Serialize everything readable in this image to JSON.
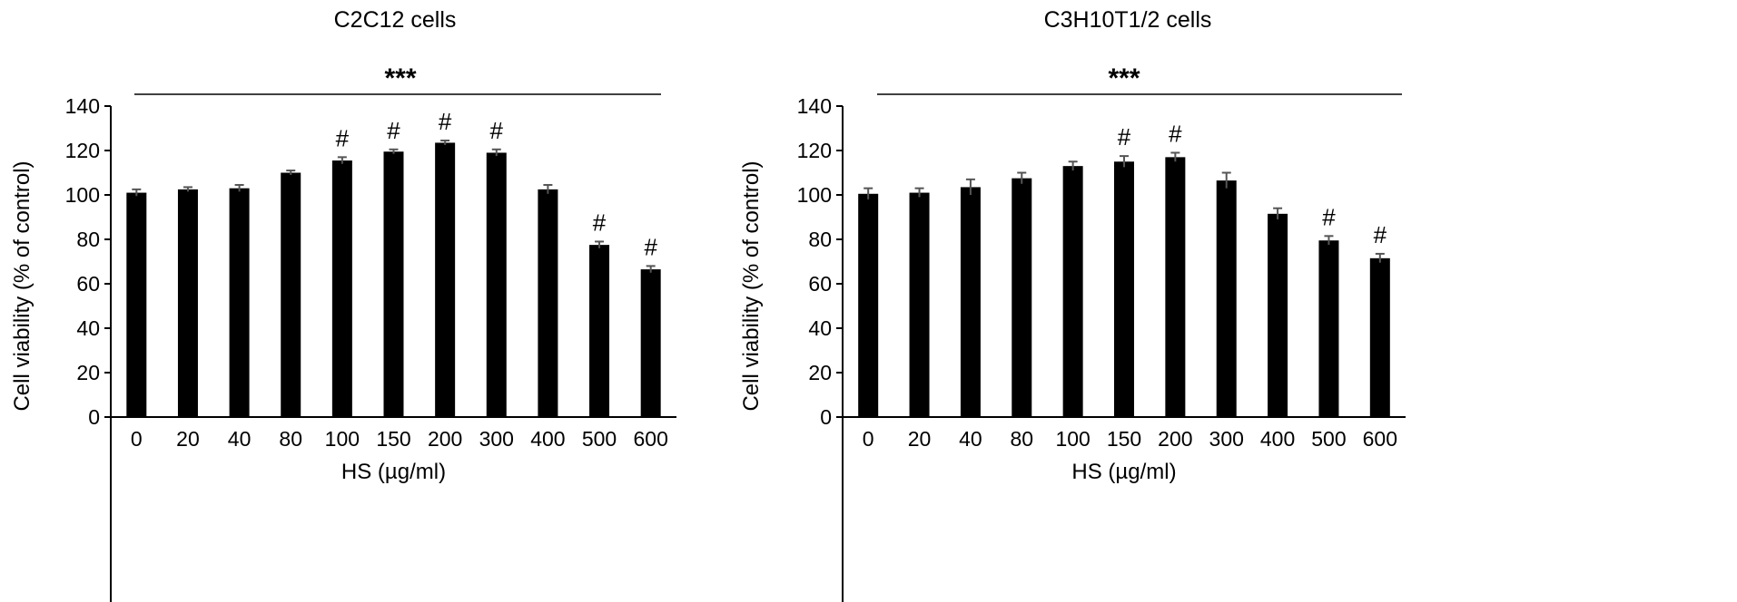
{
  "chart_data": [
    {
      "type": "bar",
      "title": "C2C12 cells",
      "xlabel": "HS (µg/ml)",
      "ylabel": "Cell viability (% of control)",
      "ylim": [
        0,
        140
      ],
      "yticks": [
        0,
        20,
        40,
        60,
        80,
        100,
        120,
        140
      ],
      "categories": [
        "0",
        "20",
        "40",
        "80",
        "100",
        "150",
        "200",
        "300",
        "400",
        "500",
        "600"
      ],
      "values": [
        101,
        102.5,
        103,
        110,
        115.5,
        119.5,
        123.5,
        119,
        102.5,
        77.5,
        66.5
      ],
      "errors": [
        1.5,
        1,
        1.5,
        1,
        1.5,
        1,
        1,
        1.5,
        2,
        1.5,
        1.5
      ],
      "significance_marks": [
        "",
        "",
        "",
        "",
        "#",
        "#",
        "#",
        "#",
        "",
        "#",
        "#"
      ],
      "overall_significance": "***",
      "grid": false,
      "legend": "none",
      "bar_color": "#000000"
    },
    {
      "type": "bar",
      "title": "C3H10T1/2 cells",
      "xlabel": "HS (µg/ml)",
      "ylabel": "Cell viability (% of control)",
      "ylim": [
        0,
        140
      ],
      "yticks": [
        0,
        20,
        40,
        60,
        80,
        100,
        120,
        140
      ],
      "categories": [
        "0",
        "20",
        "40",
        "80",
        "100",
        "150",
        "200",
        "300",
        "400",
        "500",
        "600"
      ],
      "values": [
        100.5,
        101,
        103.5,
        107.5,
        113,
        115,
        117,
        106.5,
        91.5,
        79.5,
        71.5
      ],
      "errors": [
        2.5,
        2,
        3.5,
        2.5,
        2,
        2.5,
        2,
        3.5,
        2.5,
        2,
        2
      ],
      "significance_marks": [
        "",
        "",
        "",
        "",
        "",
        "#",
        "#",
        "",
        "",
        "#",
        "#"
      ],
      "overall_significance": "***",
      "grid": false,
      "legend": "none",
      "bar_color": "#000000"
    }
  ]
}
